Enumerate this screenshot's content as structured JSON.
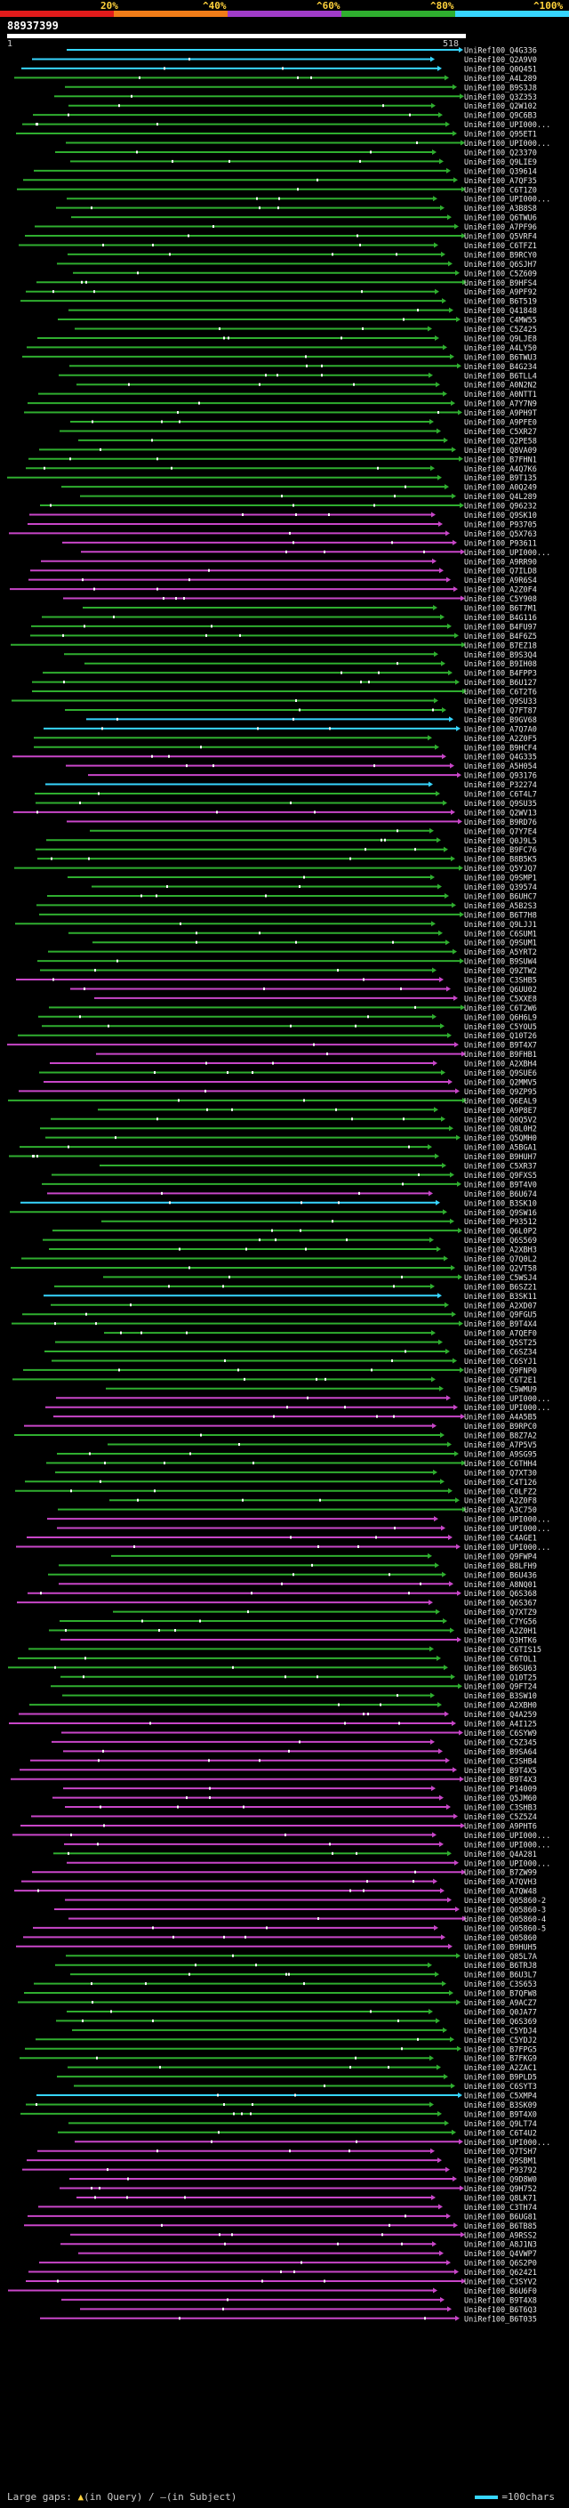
{
  "scale": {
    "labels": [
      "20%",
      "^40%",
      "^60%",
      "^80%",
      "^100%"
    ],
    "colors": [
      "#e11b1b",
      "#f07c18",
      "#a03cc8",
      "#2fae2f",
      "#37d6ff"
    ]
  },
  "query": {
    "id": "88937399",
    "start": "1",
    "end": "518"
  },
  "legend": {
    "large_gaps_label": "Large gaps:",
    "in_query_label": "(in Query)",
    "in_subject_label": "(in Subject)",
    "scale_label": "=100chars"
  },
  "hits": [
    {
      "label": "UniRef100_Q4G336",
      "color": "#37d6ff"
    },
    {
      "label": "UniRef100_Q2A9V0",
      "color": "#37d6ff"
    },
    {
      "label": "UniRef100_Q0Q451",
      "color": "#37d6ff"
    },
    {
      "label": "UniRef100_A4L289",
      "color": "#2fae2f"
    },
    {
      "label": "UniRef100_B9S3J8",
      "color": "#2fae2f"
    },
    {
      "label": "UniRef100_Q3Z353",
      "color": "#2fae2f"
    },
    {
      "label": "UniRef100_Q2W102",
      "color": "#2fae2f"
    },
    {
      "label": "UniRef100_Q9C6B3",
      "color": "#2fae2f"
    },
    {
      "label": "UniRef100_UPI000...",
      "color": "#2fae2f"
    },
    {
      "label": "UniRef100_Q95ET1",
      "color": "#2fae2f"
    },
    {
      "label": "UniRef100_UPI000...",
      "color": "#2fae2f"
    },
    {
      "label": "UniRef100_Q23370",
      "color": "#2fae2f"
    },
    {
      "label": "UniRef100_Q9LIE9",
      "color": "#2fae2f"
    },
    {
      "label": "UniRef100_Q39614",
      "color": "#2fae2f"
    },
    {
      "label": "UniRef100_A7QF35",
      "color": "#2fae2f"
    },
    {
      "label": "UniRef100_C6T1Z0",
      "color": "#2fae2f"
    },
    {
      "label": "UniRef100_UPI000...",
      "color": "#2fae2f"
    },
    {
      "label": "UniRef100_A3B8S8",
      "color": "#2fae2f"
    },
    {
      "label": "UniRef100_Q6TWU6",
      "color": "#2fae2f"
    },
    {
      "label": "UniRef100_A7PF96",
      "color": "#2fae2f"
    },
    {
      "label": "UniRef100_Q5VRF4",
      "color": "#2fae2f"
    },
    {
      "label": "UniRef100_C6TFZ1",
      "color": "#2fae2f"
    },
    {
      "label": "UniRef100_B9RCY0",
      "color": "#2fae2f"
    },
    {
      "label": "UniRef100_Q6SJH7",
      "color": "#2fae2f"
    },
    {
      "label": "UniRef100_C5Z609",
      "color": "#2fae2f"
    },
    {
      "label": "UniRef100_B9HFS4",
      "color": "#2fae2f"
    },
    {
      "label": "UniRef100_A9PF92",
      "color": "#2fae2f"
    },
    {
      "label": "UniRef100_B6T519",
      "color": "#2fae2f"
    },
    {
      "label": "UniRef100_Q41848",
      "color": "#2fae2f"
    },
    {
      "label": "UniRef100_C4MW55",
      "color": "#2fae2f"
    },
    {
      "label": "UniRef100_C5Z425",
      "color": "#2fae2f"
    },
    {
      "label": "UniRef100_Q9LJE8",
      "color": "#2fae2f"
    },
    {
      "label": "UniRef100_A4LY50",
      "color": "#2fae2f"
    },
    {
      "label": "UniRef100_B6TWU3",
      "color": "#2fae2f"
    },
    {
      "label": "UniRef100_B4G234",
      "color": "#2fae2f"
    },
    {
      "label": "UniRef100_B6TLL4",
      "color": "#2fae2f"
    },
    {
      "label": "UniRef100_A0N2N2",
      "color": "#2fae2f"
    },
    {
      "label": "UniRef100_A0NTT1",
      "color": "#2fae2f"
    },
    {
      "label": "UniRef100_A7Y7N9",
      "color": "#2fae2f"
    },
    {
      "label": "UniRef100_A9PH9T",
      "color": "#2fae2f"
    },
    {
      "label": "UniRef100_A9PFE0",
      "color": "#2fae2f"
    },
    {
      "label": "UniRef100_C5XR27",
      "color": "#2fae2f"
    },
    {
      "label": "UniRef100_Q2PE58",
      "color": "#2fae2f"
    },
    {
      "label": "UniRef100_Q8VA09",
      "color": "#2fae2f"
    },
    {
      "label": "UniRef100_B7FHN1",
      "color": "#2fae2f"
    },
    {
      "label": "UniRef100_A4Q7K6",
      "color": "#2fae2f"
    },
    {
      "label": "UniRef100_B9T135",
      "color": "#2fae2f"
    },
    {
      "label": "UniRef100_A0Q249",
      "color": "#2fae2f"
    },
    {
      "label": "UniRef100_Q4L289",
      "color": "#2fae2f"
    },
    {
      "label": "UniRef100_Q96232",
      "color": "#2fae2f"
    },
    {
      "label": "UniRef100_Q9SK10",
      "color": "#c846c8"
    },
    {
      "label": "UniRef100_P93705",
      "color": "#c846c8"
    },
    {
      "label": "UniRef100_Q5X763",
      "color": "#c846c8"
    },
    {
      "label": "UniRef100_P93611",
      "color": "#c846c8"
    },
    {
      "label": "UniRef100_UPI000...",
      "color": "#c846c8"
    },
    {
      "label": "UniRef100_A9RR90",
      "color": "#c846c8"
    },
    {
      "label": "UniRef100_Q7ILD8",
      "color": "#c846c8"
    },
    {
      "label": "UniRef100_A9R6S4",
      "color": "#c846c8"
    },
    {
      "label": "UniRef100_A2Z0F4",
      "color": "#c846c8"
    },
    {
      "label": "UniRef100_C5Y908",
      "color": "#c846c8"
    },
    {
      "label": "UniRef100_B6T7M1",
      "color": "#2fae2f"
    },
    {
      "label": "UniRef100_B4G116",
      "color": "#2fae2f"
    },
    {
      "label": "UniRef100_B4FU97",
      "color": "#2fae2f"
    },
    {
      "label": "UniRef100_B4F6Z5",
      "color": "#2fae2f"
    },
    {
      "label": "UniRef100_B7EZ18",
      "color": "#2fae2f"
    },
    {
      "label": "UniRef100_B9S3Q4",
      "color": "#2fae2f"
    },
    {
      "label": "UniRef100_B9IH08",
      "color": "#2fae2f"
    },
    {
      "label": "UniRef100_B4FPP3",
      "color": "#2fae2f"
    },
    {
      "label": "UniRef100_B6U127",
      "color": "#2fae2f"
    },
    {
      "label": "UniRef100_C6T2T6",
      "color": "#2fae2f"
    },
    {
      "label": "UniRef100_Q9SU33",
      "color": "#2fae2f"
    },
    {
      "label": "UniRef100_Q7FT87",
      "color": "#2fae2f"
    },
    {
      "label": "UniRef100_B9GV68",
      "color": "#37d6ff"
    },
    {
      "label": "UniRef100_A7Q7A0",
      "color": "#37d6ff"
    },
    {
      "label": "UniRef100_A2Z0F5",
      "color": "#2fae2f"
    },
    {
      "label": "UniRef100_B9HCF4",
      "color": "#2fae2f"
    },
    {
      "label": "UniRef100_Q4G335",
      "color": "#c846c8"
    },
    {
      "label": "UniRef100_A5H054",
      "color": "#c846c8"
    },
    {
      "label": "UniRef100_Q93176",
      "color": "#c846c8"
    },
    {
      "label": "UniRef100_P32274",
      "color": "#37d6ff"
    },
    {
      "label": "UniRef100_C6T4L7",
      "color": "#2fae2f"
    },
    {
      "label": "UniRef100_Q9SU35",
      "color": "#2fae2f"
    },
    {
      "label": "UniRef100_Q2WV13",
      "color": "#c846c8"
    },
    {
      "label": "UniRef100_B9RD76",
      "color": "#c846c8"
    },
    {
      "label": "UniRef100_Q7Y7E4",
      "color": "#2fae2f"
    },
    {
      "label": "UniRef100_Q0J9L5",
      "color": "#2fae2f"
    },
    {
      "label": "UniRef100_B9FC76",
      "color": "#2fae2f"
    },
    {
      "label": "UniRef100_B8B5K5",
      "color": "#2fae2f"
    },
    {
      "label": "UniRef100_Q5YJQ7",
      "color": "#2fae2f"
    },
    {
      "label": "UniRef100_Q9SMP1",
      "color": "#2fae2f"
    },
    {
      "label": "UniRef100_Q39574",
      "color": "#2fae2f"
    },
    {
      "label": "UniRef100_B6UHC7",
      "color": "#2fae2f"
    },
    {
      "label": "UniRef100_A5B2S3",
      "color": "#2fae2f"
    },
    {
      "label": "UniRef100_B6T7H8",
      "color": "#2fae2f"
    },
    {
      "label": "UniRef100_Q9LJJ1",
      "color": "#2fae2f"
    },
    {
      "label": "UniRef100_C6SUM1",
      "color": "#2fae2f"
    },
    {
      "label": "UniRef100_Q9SUM1",
      "color": "#2fae2f"
    },
    {
      "label": "UniRef100_A5YRT2",
      "color": "#2fae2f"
    },
    {
      "label": "UniRef100_B9SUW4",
      "color": "#2fae2f"
    },
    {
      "label": "UniRef100_Q9ZTW2",
      "color": "#2fae2f"
    },
    {
      "label": "UniRef100_C3SHB5",
      "color": "#c846c8"
    },
    {
      "label": "UniRef100_Q6UU02",
      "color": "#c846c8"
    },
    {
      "label": "UniRef100_C5XXE8",
      "color": "#c846c8"
    },
    {
      "label": "UniRef100_C6T2W6",
      "color": "#2fae2f"
    },
    {
      "label": "UniRef100_Q6H6L9",
      "color": "#2fae2f"
    },
    {
      "label": "UniRef100_C5YOU5",
      "color": "#2fae2f"
    },
    {
      "label": "UniRef100_Q10T26",
      "color": "#2fae2f"
    },
    {
      "label": "UniRef100_B9T4X7",
      "color": "#c846c8"
    },
    {
      "label": "UniRef100_B9FHB1",
      "color": "#c846c8"
    },
    {
      "label": "UniRef100_A2XBH4",
      "color": "#c846c8"
    },
    {
      "label": "UniRef100_Q9SUE6",
      "color": "#2fae2f"
    },
    {
      "label": "UniRef100_Q2MMV5",
      "color": "#c846c8"
    },
    {
      "label": "UniRef100_Q9ZP95",
      "color": "#c846c8"
    },
    {
      "label": "UniRef100_Q6EAL9",
      "color": "#2fae2f"
    },
    {
      "label": "UniRef100_A9P8E7",
      "color": "#2fae2f"
    },
    {
      "label": "UniRef100_Q0Q5V2",
      "color": "#2fae2f"
    },
    {
      "label": "UniRef100_Q8L0H2",
      "color": "#2fae2f"
    },
    {
      "label": "UniRef100_Q5QMH0",
      "color": "#2fae2f"
    },
    {
      "label": "UniRef100_A5BGA1",
      "color": "#2fae2f"
    },
    {
      "label": "UniRef100_B9HUH7",
      "color": "#2fae2f"
    },
    {
      "label": "UniRef100_C5XR37",
      "color": "#2fae2f"
    },
    {
      "label": "UniRef100_Q9FXS5",
      "color": "#2fae2f"
    },
    {
      "label": "UniRef100_B9T4V0",
      "color": "#2fae2f"
    },
    {
      "label": "UniRef100_B6U674",
      "color": "#c846c8"
    },
    {
      "label": "UniRef100_B3SK10",
      "color": "#37d6ff"
    },
    {
      "label": "UniRef100_Q9SW16",
      "color": "#2fae2f"
    },
    {
      "label": "UniRef100_P93512",
      "color": "#2fae2f"
    },
    {
      "label": "UniRef100_Q6L0P2",
      "color": "#2fae2f"
    },
    {
      "label": "UniRef100_Q6S569",
      "color": "#2fae2f"
    },
    {
      "label": "UniRef100_A2XBH3",
      "color": "#2fae2f"
    },
    {
      "label": "UniRef100_Q7Q0L2",
      "color": "#2fae2f"
    },
    {
      "label": "UniRef100_Q2VT58",
      "color": "#2fae2f"
    },
    {
      "label": "UniRef100_C5WSJ4",
      "color": "#2fae2f"
    },
    {
      "label": "UniRef100_B6SZ21",
      "color": "#2fae2f"
    },
    {
      "label": "UniRef100_B3SK11",
      "color": "#37d6ff"
    },
    {
      "label": "UniRef100_A2XD07",
      "color": "#2fae2f"
    },
    {
      "label": "UniRef100_Q9FGU5",
      "color": "#2fae2f"
    },
    {
      "label": "UniRef100_B9T4X4",
      "color": "#2fae2f"
    },
    {
      "label": "UniRef100_A7QEF0",
      "color": "#2fae2f"
    },
    {
      "label": "UniRef100_Q5ST25",
      "color": "#2fae2f"
    },
    {
      "label": "UniRef100_C6SZ34",
      "color": "#2fae2f"
    },
    {
      "label": "UniRef100_C6SYJ1",
      "color": "#2fae2f"
    },
    {
      "label": "UniRef100_Q9FNP0",
      "color": "#2fae2f"
    },
    {
      "label": "UniRef100_C6T2E1",
      "color": "#2fae2f"
    },
    {
      "label": "UniRef100_C5WMU9",
      "color": "#2fae2f"
    },
    {
      "label": "UniRef100_UPI000...",
      "color": "#c846c8"
    },
    {
      "label": "UniRef100_UPI000...",
      "color": "#c846c8"
    },
    {
      "label": "UniRef100_A4A5B5",
      "color": "#c846c8"
    },
    {
      "label": "UniRef100_B9RPC0",
      "color": "#c846c8"
    },
    {
      "label": "UniRef100_B8Z7A2",
      "color": "#2fae2f"
    },
    {
      "label": "UniRef100_A7P5V5",
      "color": "#2fae2f"
    },
    {
      "label": "UniRef100_A9SG95",
      "color": "#2fae2f"
    },
    {
      "label": "UniRef100_C6THH4",
      "color": "#2fae2f"
    },
    {
      "label": "UniRef100_Q7XT30",
      "color": "#2fae2f"
    },
    {
      "label": "UniRef100_C4T126",
      "color": "#2fae2f"
    },
    {
      "label": "UniRef100_C0LFZ2",
      "color": "#2fae2f"
    },
    {
      "label": "UniRef100_A2Z0F8",
      "color": "#2fae2f"
    },
    {
      "label": "UniRef100_A3C750",
      "color": "#2fae2f"
    },
    {
      "label": "UniRef100_UPI000...",
      "color": "#c846c8"
    },
    {
      "label": "UniRef100_UPI000...",
      "color": "#c846c8"
    },
    {
      "label": "UniRef100_C4AGE1",
      "color": "#c846c8"
    },
    {
      "label": "UniRef100_UPI000...",
      "color": "#c846c8"
    },
    {
      "label": "UniRef100_Q9FWP4",
      "color": "#2fae2f"
    },
    {
      "label": "UniRef100_B8LFH9",
      "color": "#2fae2f"
    },
    {
      "label": "UniRef100_B6U436",
      "color": "#2fae2f"
    },
    {
      "label": "UniRef100_A8NQ01",
      "color": "#c846c8"
    },
    {
      "label": "UniRef100_Q6S368",
      "color": "#c846c8"
    },
    {
      "label": "UniRef100_Q6S367",
      "color": "#c846c8"
    },
    {
      "label": "UniRef100_Q7XTZ9",
      "color": "#2fae2f"
    },
    {
      "label": "UniRef100_C7YG56",
      "color": "#2fae2f"
    },
    {
      "label": "UniRef100_A2Z0H1",
      "color": "#2fae2f"
    },
    {
      "label": "UniRef100_Q3HTK6",
      "color": "#c846c8"
    },
    {
      "label": "UniRef100_C6TIS15",
      "color": "#2fae2f"
    },
    {
      "label": "UniRef100_C6TOL1",
      "color": "#2fae2f"
    },
    {
      "label": "UniRef100_B6SU63",
      "color": "#2fae2f"
    },
    {
      "label": "UniRef100_Q10T25",
      "color": "#2fae2f"
    },
    {
      "label": "UniRef100_Q9FT24",
      "color": "#2fae2f"
    },
    {
      "label": "UniRef100_B3SW10",
      "color": "#2fae2f"
    },
    {
      "label": "UniRef100_A2XBH0",
      "color": "#2fae2f"
    },
    {
      "label": "UniRef100_Q4A259",
      "color": "#c846c8"
    },
    {
      "label": "UniRef100_A4I125",
      "color": "#c846c8"
    },
    {
      "label": "UniRef100_C6SYW9",
      "color": "#c846c8"
    },
    {
      "label": "UniRef100_C5Z345",
      "color": "#c846c8"
    },
    {
      "label": "UniRef100_B9SA64",
      "color": "#c846c8"
    },
    {
      "label": "UniRef100_C3SHB4",
      "color": "#c846c8"
    },
    {
      "label": "UniRef100_B9T4X5",
      "color": "#c846c8"
    },
    {
      "label": "UniRef100_B9T4X3",
      "color": "#c846c8"
    },
    {
      "label": "UniRef100_P14009",
      "color": "#c846c8"
    },
    {
      "label": "UniRef100_Q5JM60",
      "color": "#c846c8"
    },
    {
      "label": "UniRef100_C3SHB3",
      "color": "#c846c8"
    },
    {
      "label": "UniRef100_C5Z5Z4",
      "color": "#c846c8"
    },
    {
      "label": "UniRef100_A9PHT6",
      "color": "#c846c8"
    },
    {
      "label": "UniRef100_UPI000...",
      "color": "#c846c8"
    },
    {
      "label": "UniRef100_UPI000...",
      "color": "#c846c8"
    },
    {
      "label": "UniRef100_Q4A281",
      "color": "#2fae2f"
    },
    {
      "label": "UniRef100_UPI000...",
      "color": "#c846c8"
    },
    {
      "label": "UniRef100_B7ZW99",
      "color": "#c846c8"
    },
    {
      "label": "UniRef100_A7QVH3",
      "color": "#c846c8"
    },
    {
      "label": "UniRef100_A7QW48",
      "color": "#c846c8"
    },
    {
      "label": "UniRef100_Q05860-2",
      "color": "#c846c8"
    },
    {
      "label": "UniRef100_Q05860-3",
      "color": "#c846c8"
    },
    {
      "label": "UniRef100_Q05860-4",
      "color": "#c846c8"
    },
    {
      "label": "UniRef100_Q05860-5",
      "color": "#c846c8"
    },
    {
      "label": "UniRef100_Q05860",
      "color": "#c846c8"
    },
    {
      "label": "UniRef100_B9HUH5",
      "color": "#c846c8"
    },
    {
      "label": "UniRef100_Q85L7A",
      "color": "#2fae2f"
    },
    {
      "label": "UniRef100_B6TRJ8",
      "color": "#2fae2f"
    },
    {
      "label": "UniRef100_B6U3L7",
      "color": "#2fae2f"
    },
    {
      "label": "UniRef100_C3S653",
      "color": "#2fae2f"
    },
    {
      "label": "UniRef100_B7QFW8",
      "color": "#2fae2f"
    },
    {
      "label": "UniRef100_A9ACZ7",
      "color": "#2fae2f"
    },
    {
      "label": "UniRef100_Q0JA77",
      "color": "#2fae2f"
    },
    {
      "label": "UniRef100_Q6S369",
      "color": "#2fae2f"
    },
    {
      "label": "UniRef100_C5YDJ4",
      "color": "#2fae2f"
    },
    {
      "label": "UniRef100_C5YDJ2",
      "color": "#2fae2f"
    },
    {
      "label": "UniRef100_B7FPG5",
      "color": "#2fae2f"
    },
    {
      "label": "UniRef100_B7FKG9",
      "color": "#2fae2f"
    },
    {
      "label": "UniRef100_A2ZAC1",
      "color": "#2fae2f"
    },
    {
      "label": "UniRef100_B9PLD5",
      "color": "#2fae2f"
    },
    {
      "label": "UniRef100_C6SYT3",
      "color": "#2fae2f"
    },
    {
      "label": "UniRef100_C5XMP4",
      "color": "#37d6ff"
    },
    {
      "label": "UniRef100_B3SK09",
      "color": "#2fae2f"
    },
    {
      "label": "UniRef100_B9T4X0",
      "color": "#2fae2f"
    },
    {
      "label": "UniRef100_Q9LT74",
      "color": "#2fae2f"
    },
    {
      "label": "UniRef100_C6T4U2",
      "color": "#2fae2f"
    },
    {
      "label": "UniRef100_UPI000...",
      "color": "#c846c8"
    },
    {
      "label": "UniRef100_Q7TSH7",
      "color": "#c846c8"
    },
    {
      "label": "UniRef100_Q9SBM1",
      "color": "#c846c8"
    },
    {
      "label": "UniRef100_P93792",
      "color": "#c846c8"
    },
    {
      "label": "UniRef100_Q9D8W0",
      "color": "#c846c8"
    },
    {
      "label": "UniRef100_Q9H752",
      "color": "#c846c8"
    },
    {
      "label": "UniRef100_Q8LK71",
      "color": "#c846c8"
    },
    {
      "label": "UniRef100_C3TH74",
      "color": "#c846c8"
    },
    {
      "label": "UniRef100_B6UG81",
      "color": "#c846c8"
    },
    {
      "label": "UniRef100_B6TB85",
      "color": "#c846c8"
    },
    {
      "label": "UniRef100_A9RSS2",
      "color": "#c846c8"
    },
    {
      "label": "UniRef100_A8J1N3",
      "color": "#c846c8"
    },
    {
      "label": "UniRef100_Q4VWP7",
      "color": "#c846c8"
    },
    {
      "label": "UniRef100_Q6S2P0",
      "color": "#c846c8"
    },
    {
      "label": "UniRef100_Q62421",
      "color": "#c846c8"
    },
    {
      "label": "UniRef100_C3SYV2",
      "color": "#c846c8"
    },
    {
      "label": "UniRef100_B6U6F0",
      "color": "#c846c8"
    },
    {
      "label": "UniRef100_B9T4X8",
      "color": "#c846c8"
    },
    {
      "label": "UniRef100_B6T6Q3",
      "color": "#c846c8"
    },
    {
      "label": "UniRef100_B6T035",
      "color": "#c846c8"
    }
  ]
}
